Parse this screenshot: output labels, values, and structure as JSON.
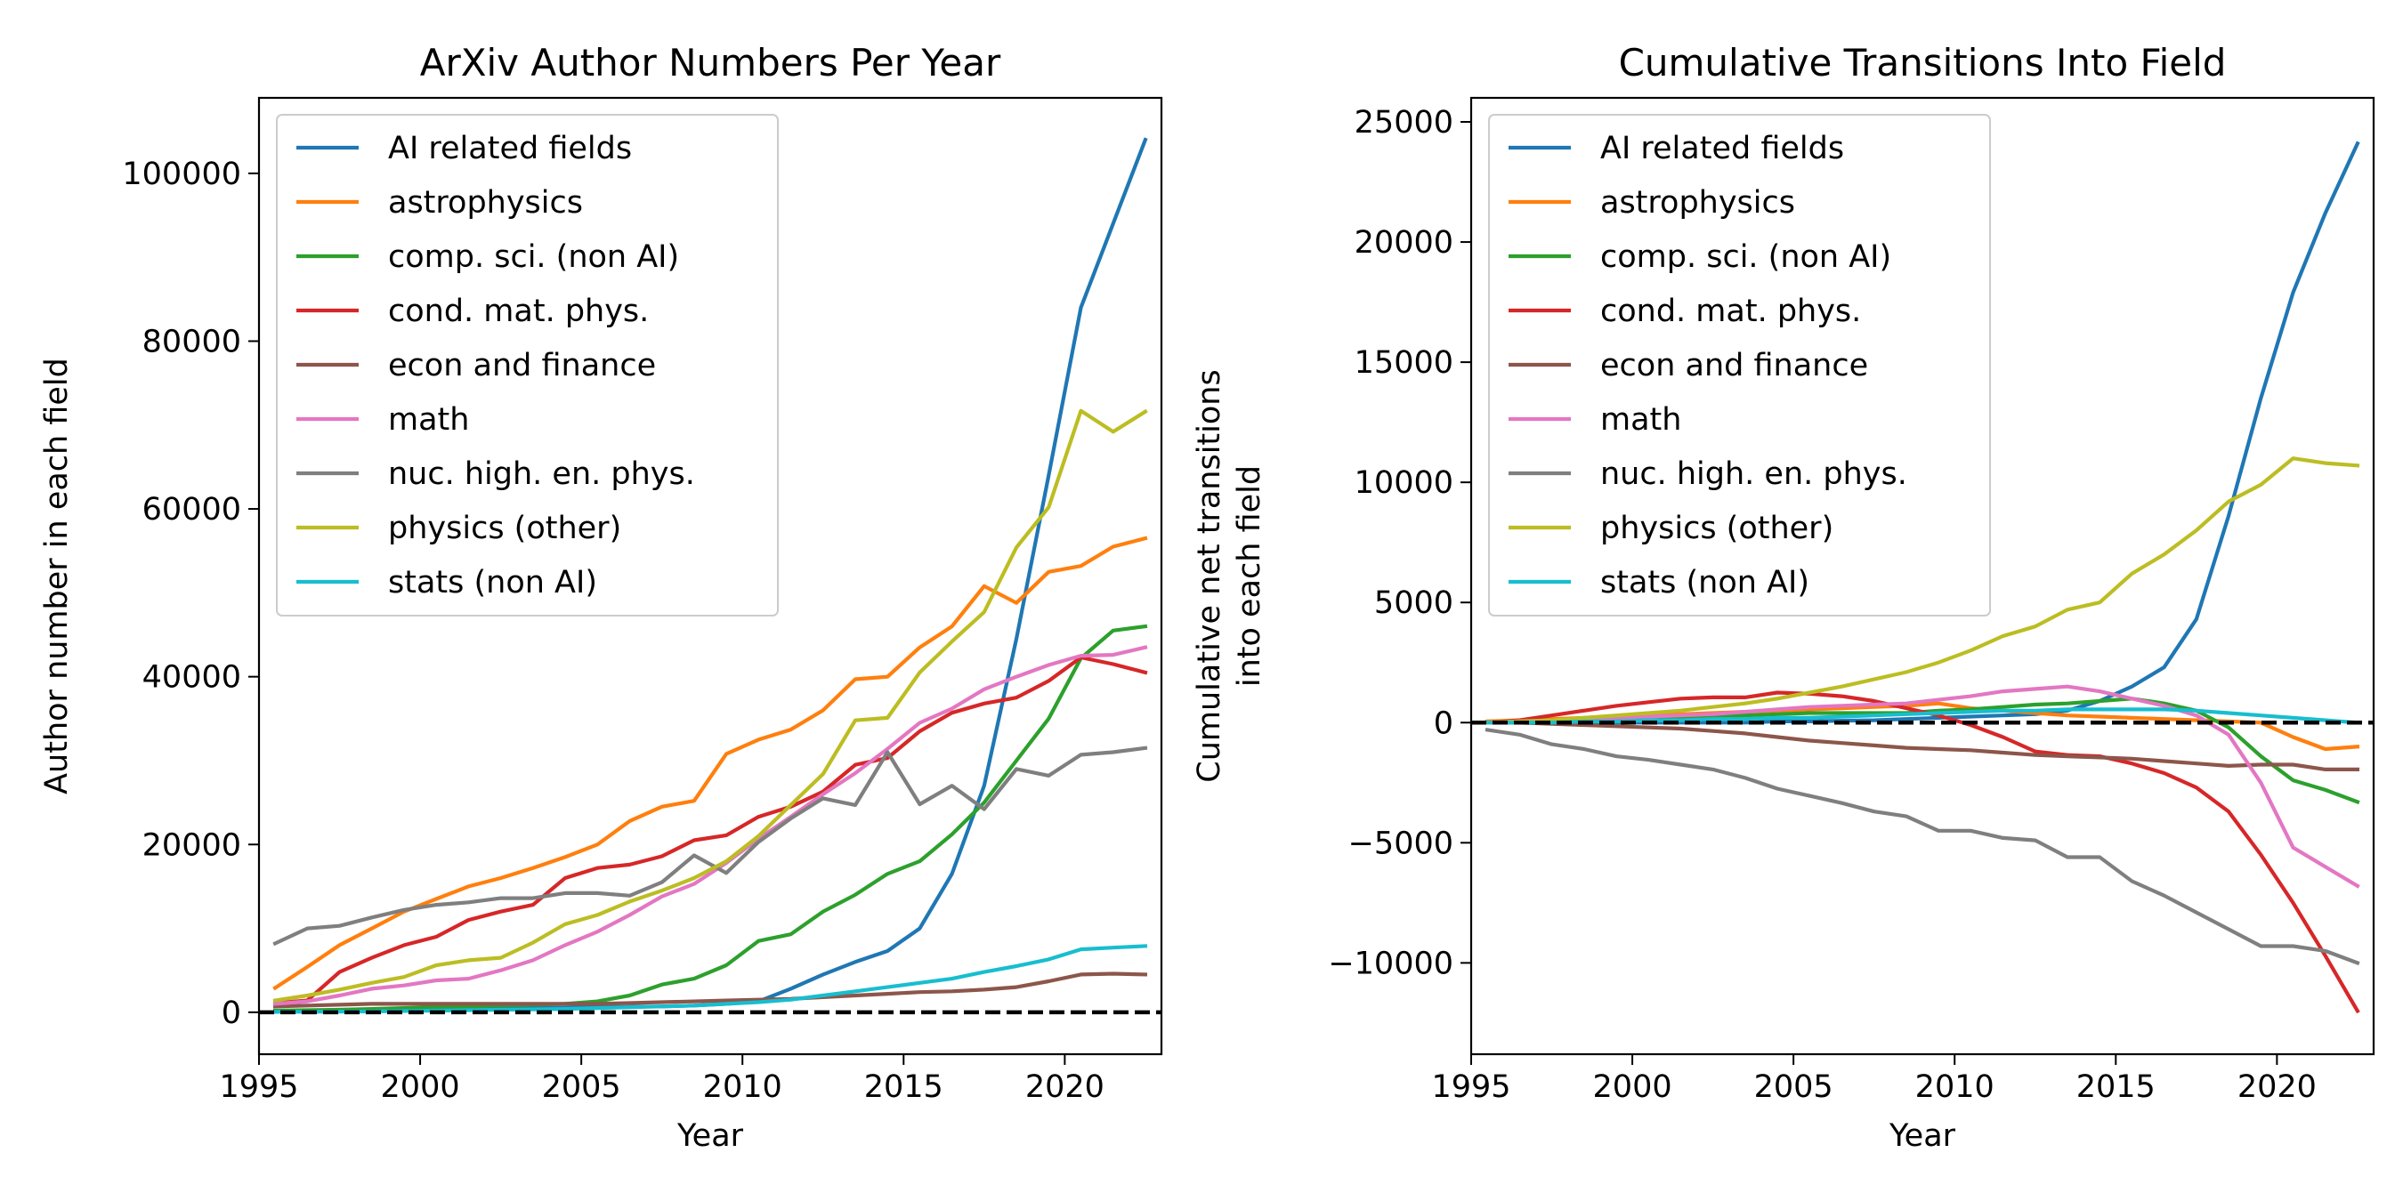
{
  "chart_data": [
    {
      "type": "line",
      "title": "ArXiv Author Numbers Per Year",
      "xlabel": "Year",
      "ylabel": "Author number in each field",
      "xlim": [
        1995,
        2023
      ],
      "ylim": [
        -5000,
        109000
      ],
      "xticks": [
        1995,
        2000,
        2005,
        2010,
        2015,
        2020
      ],
      "yticks": [
        0,
        20000,
        40000,
        60000,
        80000,
        100000
      ],
      "grid": false,
      "legend": "top-left",
      "reference_line": {
        "y": 0,
        "style": "dashed",
        "color": "#000000"
      },
      "x": [
        1995.5,
        1996.5,
        1997.5,
        1998.5,
        1999.5,
        2000.5,
        2001.5,
        2002.5,
        2003.5,
        2004.5,
        2005.5,
        2006.5,
        2007.5,
        2008.5,
        2009.5,
        2010.5,
        2011.5,
        2012.5,
        2013.5,
        2014.5,
        2015.5,
        2016.5,
        2017.5,
        2018.5,
        2019.5,
        2020.5,
        2021.5,
        2022.5
      ],
      "series": [
        {
          "name": "AI related fields",
          "color": "#1f77b4",
          "values": [
            100,
            150,
            200,
            250,
            300,
            350,
            400,
            450,
            500,
            550,
            600,
            650,
            700,
            800,
            1000,
            1300,
            2800,
            4500,
            6000,
            7300,
            10000,
            16500,
            27000,
            44500,
            64000,
            84000,
            94000,
            104000
          ]
        },
        {
          "name": "astrophysics",
          "color": "#ff7f0e",
          "values": [
            2900,
            5400,
            8000,
            10000,
            12000,
            13500,
            15000,
            16000,
            17200,
            18500,
            20000,
            22800,
            24500,
            25200,
            30800,
            32500,
            33700,
            36000,
            39700,
            40000,
            43500,
            46000,
            50800,
            48800,
            52500,
            53200,
            55500,
            56500
          ]
        },
        {
          "name": "comp. sci. (non AI)",
          "color": "#2ca02c",
          "values": [
            200,
            250,
            300,
            400,
            500,
            600,
            700,
            800,
            900,
            1000,
            1300,
            2000,
            3300,
            4000,
            5600,
            8500,
            9300,
            12000,
            14000,
            16500,
            18000,
            21200,
            25000,
            30000,
            35000,
            42200,
            45500,
            46000
          ]
        },
        {
          "name": "cond. mat. phys.",
          "color": "#d62728",
          "values": [
            1100,
            1400,
            4800,
            6500,
            8000,
            9000,
            11000,
            12000,
            12800,
            16000,
            17200,
            17600,
            18600,
            20500,
            21100,
            23300,
            24500,
            26300,
            29500,
            30300,
            33500,
            35700,
            36800,
            37500,
            39500,
            42300,
            41500,
            40500
          ]
        },
        {
          "name": "econ and finance",
          "color": "#8c564b",
          "values": [
            700,
            800,
            900,
            1000,
            1000,
            1000,
            1000,
            1000,
            1000,
            1000,
            1000,
            1100,
            1200,
            1300,
            1400,
            1500,
            1600,
            1800,
            2000,
            2200,
            2400,
            2500,
            2700,
            3000,
            3700,
            4500,
            4600,
            4500
          ]
        },
        {
          "name": "math",
          "color": "#e377c2",
          "values": [
            1000,
            1300,
            2000,
            2800,
            3200,
            3800,
            4000,
            5000,
            6200,
            8000,
            9600,
            11600,
            13800,
            15300,
            17800,
            20700,
            23300,
            26000,
            28500,
            31400,
            34500,
            36200,
            38500,
            40000,
            41400,
            42500,
            42600,
            43500
          ]
        },
        {
          "name": "nuc. high. en. phys.",
          "color": "#7f7f7f",
          "values": [
            8200,
            10000,
            10300,
            11300,
            12200,
            12800,
            13100,
            13600,
            13600,
            14200,
            14200,
            13900,
            15500,
            18700,
            16600,
            20300,
            23100,
            25500,
            24700,
            31000,
            24800,
            27000,
            24200,
            29000,
            28200,
            30700,
            31000,
            31500
          ]
        },
        {
          "name": "physics (other)",
          "color": "#bcbd22",
          "values": [
            1400,
            2000,
            2700,
            3500,
            4200,
            5600,
            6200,
            6500,
            8300,
            10500,
            11600,
            13200,
            14500,
            16000,
            18000,
            21000,
            24700,
            28400,
            34800,
            35100,
            40500,
            44200,
            47700,
            55400,
            60200,
            71700,
            69200,
            71600
          ]
        },
        {
          "name": "stats (non AI)",
          "color": "#17becf",
          "values": [
            50,
            60,
            80,
            100,
            150,
            200,
            250,
            300,
            350,
            400,
            500,
            600,
            700,
            800,
            1000,
            1200,
            1500,
            2000,
            2500,
            3000,
            3500,
            4000,
            4800,
            5500,
            6300,
            7500,
            7700,
            7900
          ]
        }
      ]
    },
    {
      "type": "line",
      "title": "Cumulative Transitions Into Field",
      "xlabel": "Year",
      "ylabel": "Cumulative net transitions\ninto each field",
      "ylabel_lines": [
        "Cumulative net transitions",
        "into each field"
      ],
      "xlim": [
        1995,
        2023
      ],
      "ylim": [
        -13800,
        26000
      ],
      "xticks": [
        1995,
        2000,
        2005,
        2010,
        2015,
        2020
      ],
      "yticks": [
        -10000,
        -5000,
        0,
        5000,
        10000,
        15000,
        20000,
        25000
      ],
      "grid": false,
      "legend": "top-left",
      "reference_line": {
        "y": 0,
        "style": "dashed",
        "color": "#000000"
      },
      "x": [
        1995.5,
        1996.5,
        1997.5,
        1998.5,
        1999.5,
        2000.5,
        2001.5,
        2002.5,
        2003.5,
        2004.5,
        2005.5,
        2006.5,
        2007.5,
        2008.5,
        2009.5,
        2010.5,
        2011.5,
        2012.5,
        2013.5,
        2014.5,
        2015.5,
        2016.5,
        2017.5,
        2018.5,
        2019.5,
        2020.5,
        2021.5,
        2022.5
      ],
      "series": [
        {
          "name": "AI related fields",
          "color": "#1f77b4",
          "values": [
            0,
            0,
            0,
            0,
            0,
            0,
            0,
            0,
            0,
            50,
            50,
            80,
            100,
            150,
            200,
            250,
            300,
            350,
            500,
            900,
            1500,
            2300,
            4300,
            8600,
            13500,
            17900,
            21200,
            24100
          ]
        },
        {
          "name": "astrophysics",
          "color": "#ff7f0e",
          "values": [
            50,
            100,
            150,
            200,
            250,
            300,
            350,
            400,
            450,
            500,
            550,
            600,
            650,
            700,
            800,
            600,
            500,
            400,
            300,
            250,
            200,
            150,
            100,
            50,
            0,
            -600,
            -1100,
            -1000
          ]
        },
        {
          "name": "comp. sci. (non AI)",
          "color": "#2ca02c",
          "values": [
            0,
            0,
            0,
            50,
            100,
            150,
            200,
            250,
            300,
            350,
            400,
            400,
            400,
            400,
            500,
            550,
            650,
            750,
            800,
            900,
            1000,
            800,
            500,
            -200,
            -1400,
            -2400,
            -2800,
            -3300
          ]
        },
        {
          "name": "cond. mat. phys.",
          "color": "#d62728",
          "values": [
            0,
            100,
            300,
            500,
            700,
            850,
            1000,
            1050,
            1050,
            1250,
            1200,
            1100,
            900,
            600,
            300,
            -100,
            -600,
            -1200,
            -1350,
            -1400,
            -1700,
            -2100,
            -2700,
            -3700,
            -5500,
            -7500,
            -9700,
            -12000
          ]
        },
        {
          "name": "econ and finance",
          "color": "#8c564b",
          "values": [
            0,
            0,
            -50,
            -100,
            -150,
            -200,
            -250,
            -350,
            -450,
            -600,
            -750,
            -850,
            -950,
            -1050,
            -1100,
            -1150,
            -1250,
            -1350,
            -1400,
            -1450,
            -1500,
            -1600,
            -1700,
            -1800,
            -1750,
            -1750,
            -1950,
            -1950
          ]
        },
        {
          "name": "math",
          "color": "#e377c2",
          "values": [
            0,
            50,
            100,
            150,
            200,
            250,
            300,
            350,
            450,
            550,
            650,
            700,
            750,
            800,
            950,
            1100,
            1300,
            1400,
            1500,
            1300,
            1000,
            700,
            300,
            -500,
            -2500,
            -5200,
            -6000,
            -6800
          ]
        },
        {
          "name": "nuc. high. en. phys.",
          "color": "#7f7f7f",
          "values": [
            -300,
            -500,
            -900,
            -1100,
            -1400,
            -1550,
            -1750,
            -1950,
            -2300,
            -2750,
            -3050,
            -3350,
            -3700,
            -3900,
            -4500,
            -4500,
            -4800,
            -4900,
            -5600,
            -5600,
            -6600,
            -7200,
            -7900,
            -8600,
            -9300,
            -9300,
            -9500,
            -10000
          ]
        },
        {
          "name": "physics (other)",
          "color": "#bcbd22",
          "values": [
            0,
            50,
            100,
            200,
            300,
            400,
            500,
            650,
            800,
            1000,
            1250,
            1500,
            1800,
            2100,
            2500,
            3000,
            3600,
            4000,
            4700,
            5000,
            6200,
            7000,
            8000,
            9200,
            9900,
            11000,
            10800,
            10700
          ]
        },
        {
          "name": "stats (non AI)",
          "color": "#17becf",
          "values": [
            0,
            0,
            0,
            50,
            50,
            100,
            100,
            150,
            150,
            200,
            200,
            250,
            300,
            350,
            400,
            450,
            500,
            500,
            550,
            550,
            550,
            550,
            500,
            400,
            300,
            200,
            100,
            0
          ]
        }
      ]
    }
  ]
}
